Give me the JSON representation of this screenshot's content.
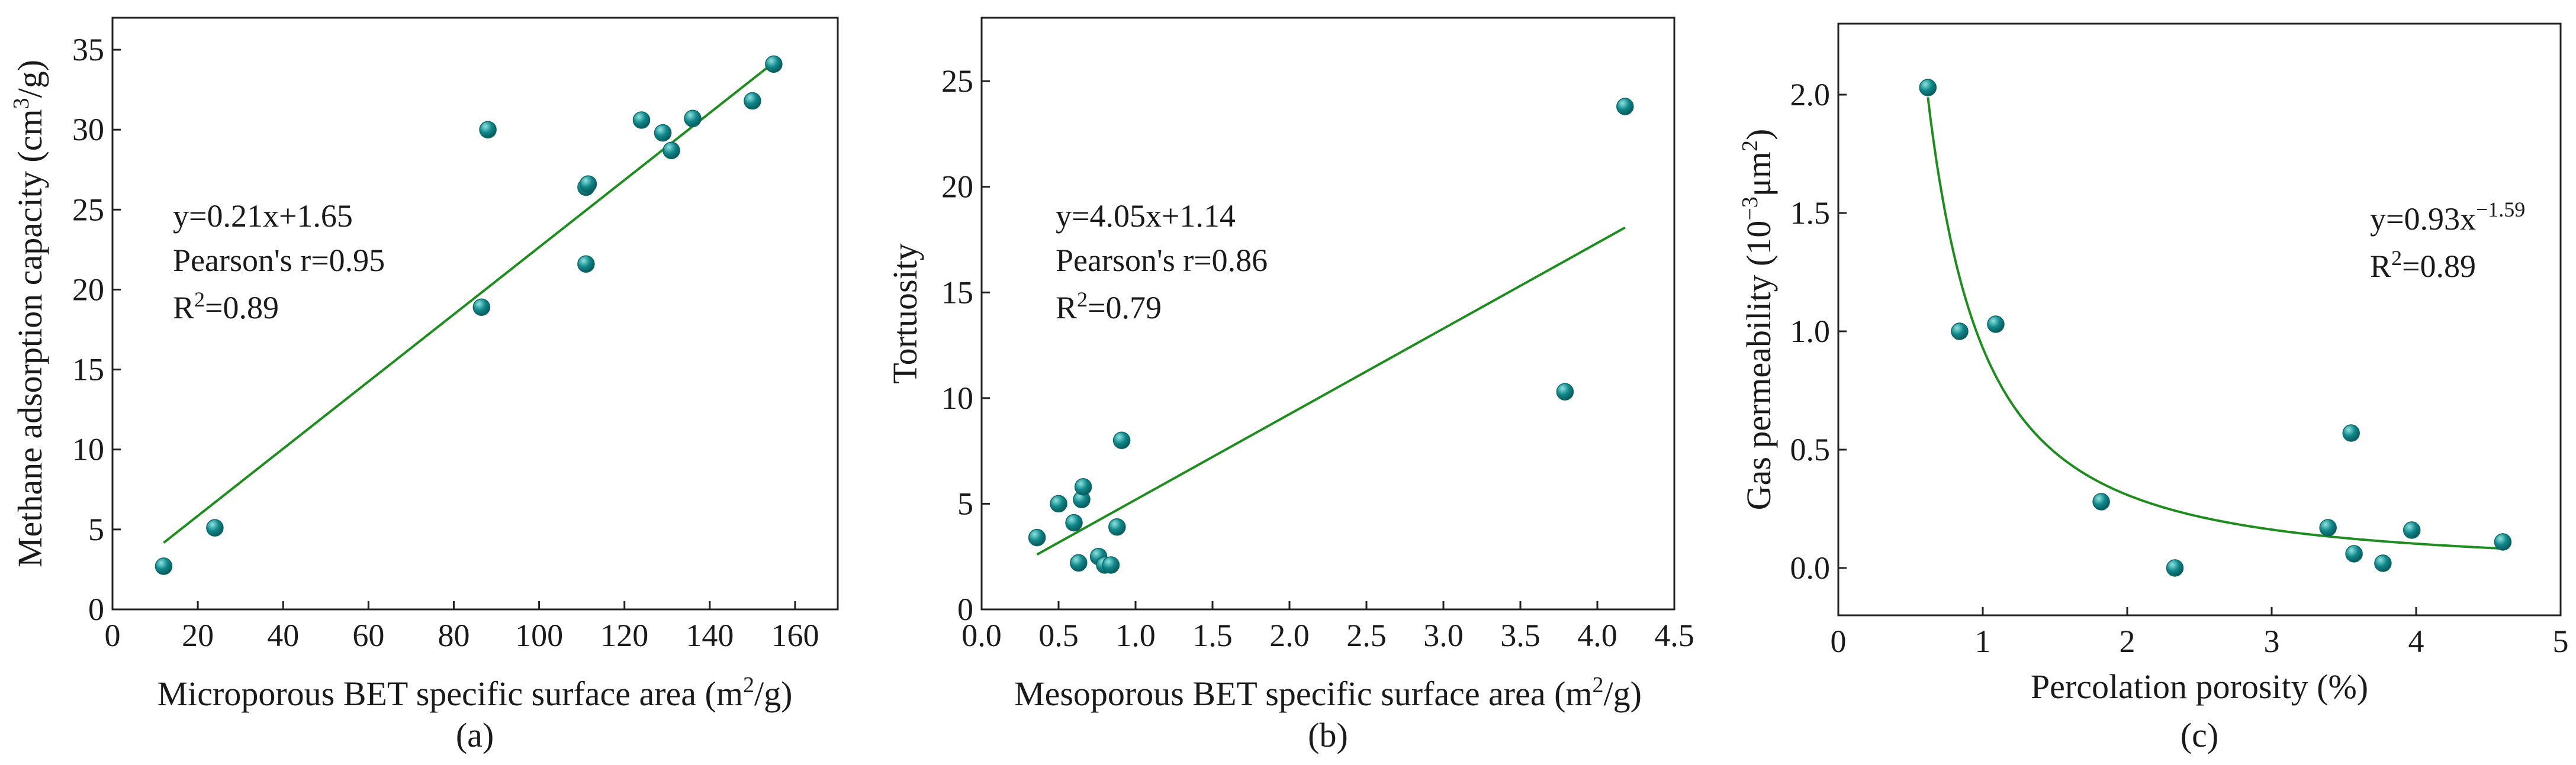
{
  "colors": {
    "point": "#10878a",
    "point_highlight": "#8ee3e0",
    "fit_line": "#1e8c1e",
    "axis": "#222222"
  },
  "chart_data": [
    {
      "type": "scatter",
      "caption": "(a)",
      "xlabel": "Microporous BET specific surface area (m",
      "xlabel_sup": "2",
      "xlabel_tail": "/g)",
      "ylabel": "Methane adsorption capacity (cm",
      "ylabel_sup": "3",
      "ylabel_tail": "/g)",
      "xlim": [
        0,
        170
      ],
      "ylim": [
        0,
        37
      ],
      "xticks": [
        0,
        20,
        40,
        60,
        80,
        100,
        120,
        140,
        160
      ],
      "yticks": [
        0,
        5,
        10,
        15,
        20,
        25,
        30,
        35
      ],
      "x": [
        12,
        24,
        86.5,
        88,
        111,
        111.5,
        111,
        124,
        129,
        131,
        136,
        150,
        155
      ],
      "y": [
        2.7,
        5.1,
        18.9,
        30,
        26.4,
        26.6,
        21.6,
        30.6,
        29.8,
        28.7,
        30.7,
        31.8,
        34.1
      ],
      "fit": {
        "kind": "linear",
        "a": 0.21,
        "b": 1.65,
        "x_range": [
          12,
          155
        ]
      },
      "equation": "y=0.21x+1.65",
      "pearson": "Pearson's r=0.95",
      "r2_prefix": "R",
      "r2_sup": "2",
      "r2_value": "=0.89"
    },
    {
      "type": "scatter",
      "caption": "(b)",
      "xlabel": "Mesoporous BET specific surface area (m",
      "xlabel_sup": "2",
      "xlabel_tail": "/g)",
      "ylabel": "Tortuosity",
      "xlim": [
        0,
        4.5
      ],
      "ylim": [
        0,
        28
      ],
      "xticks": [
        0.0,
        0.5,
        1.0,
        1.5,
        2.0,
        2.5,
        3.0,
        3.5,
        4.0,
        4.5
      ],
      "xtick_labels": [
        "0.0",
        "0.5",
        "1.0",
        "1.5",
        "2.0",
        "2.5",
        "3.0",
        "3.5",
        "4.0",
        "4.5"
      ],
      "yticks": [
        0,
        5,
        10,
        15,
        20,
        25
      ],
      "x": [
        0.36,
        0.5,
        0.6,
        0.63,
        0.65,
        0.66,
        0.76,
        0.8,
        0.84,
        0.88,
        0.91,
        3.79,
        4.18
      ],
      "y": [
        3.4,
        5.0,
        4.1,
        2.2,
        5.2,
        5.8,
        2.5,
        2.1,
        2.1,
        3.9,
        8.0,
        10.3,
        23.8
      ],
      "fit": {
        "kind": "linear",
        "a": 4.05,
        "b": 1.14,
        "x_range": [
          0.36,
          4.18
        ]
      },
      "equation": "y=4.05x+1.14",
      "pearson": "Pearson's r=0.86",
      "r2_prefix": "R",
      "r2_sup": "2",
      "r2_value": "=0.79"
    },
    {
      "type": "scatter",
      "caption": "(c)",
      "xlabel": "Percolation porosity (%)",
      "ylabel": "Gas permeability (10",
      "ylabel_sup": "−3",
      "ylabel_mid": "μm",
      "ylabel_sup2": "2",
      "ylabel_tail": ")",
      "xlim": [
        0,
        5
      ],
      "ylim": [
        -0.2,
        2.3
      ],
      "xticks": [
        0,
        1,
        2,
        3,
        4,
        5
      ],
      "yticks": [
        0.0,
        0.5,
        1.0,
        1.5,
        2.0
      ],
      "ytick_labels": [
        "0.0",
        "0.5",
        "1.0",
        "1.5",
        "2.0"
      ],
      "x": [
        0.62,
        0.84,
        1.09,
        1.82,
        2.33,
        3.39,
        3.55,
        3.57,
        3.77,
        3.97,
        4.6
      ],
      "y": [
        2.03,
        1.0,
        1.03,
        0.28,
        0.0,
        0.17,
        0.57,
        0.06,
        0.02,
        0.16,
        0.11
      ],
      "fit": {
        "kind": "power",
        "a": 0.93,
        "b": -1.59,
        "x_range": [
          0.62,
          4.6
        ]
      },
      "equation_prefix": "y=0.93x",
      "equation_sup": "−1.59",
      "r2_prefix": "R",
      "r2_sup": "2",
      "r2_value": "=0.89"
    }
  ]
}
